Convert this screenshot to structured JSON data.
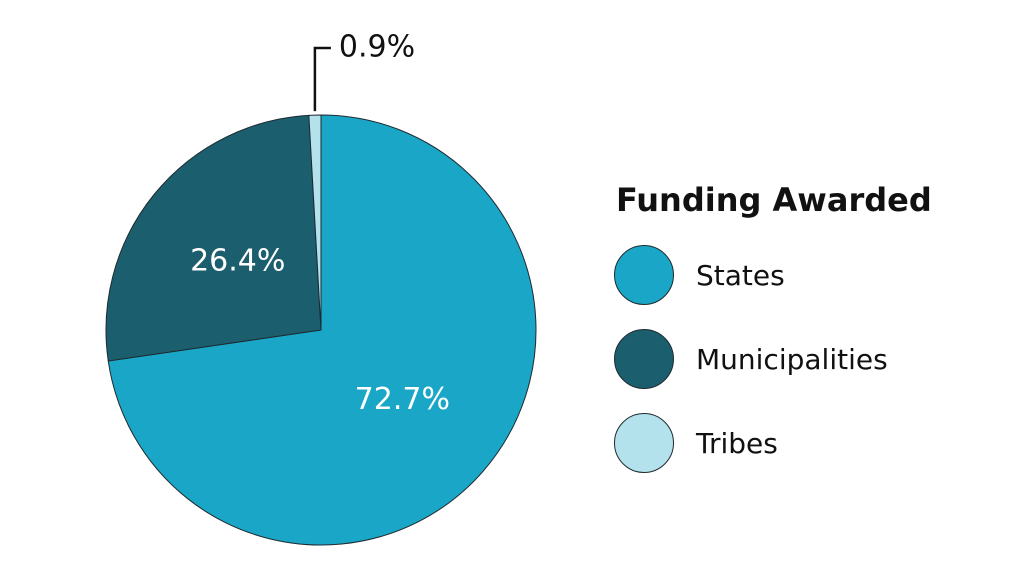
{
  "chart_data": {
    "type": "pie",
    "title": "",
    "legend_title": "Funding Awarded",
    "legend_position": "right",
    "slices": [
      {
        "name": "States",
        "value": 72.7,
        "label": "72.7%",
        "color": "#1aa6c6"
      },
      {
        "name": "Municipalities",
        "value": 26.4,
        "label": "26.4%",
        "color": "#1b5e6e"
      },
      {
        "name": "Tribes",
        "value": 0.9,
        "label": "0.9%",
        "color": "#b4e2ec"
      }
    ]
  }
}
